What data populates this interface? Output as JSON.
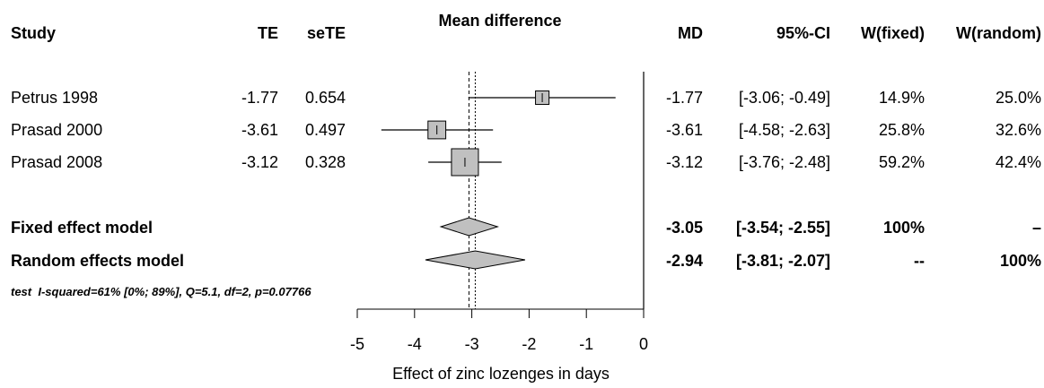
{
  "chart_data": {
    "type": "forest",
    "columns": {
      "study": "Study",
      "te": "TE",
      "sete": "seTE",
      "plot": "Mean difference",
      "md": "MD",
      "ci": "95%-CI",
      "w_fixed": "W(fixed)",
      "w_random": "W(random)"
    },
    "studies": [
      {
        "name": "Petrus 1998",
        "te": "-1.77",
        "sete": "0.654",
        "md_label": "-1.77",
        "ci_label": "[-3.06; -0.49]",
        "w_fixed": "14.9%",
        "w_random": "25.0%",
        "md": -1.77,
        "lower": -3.06,
        "upper": -0.49,
        "weight": 14.9
      },
      {
        "name": "Prasad 2000",
        "te": "-3.61",
        "sete": "0.497",
        "md_label": "-3.61",
        "ci_label": "[-4.58; -2.63]",
        "w_fixed": "25.8%",
        "w_random": "32.6%",
        "md": -3.61,
        "lower": -4.58,
        "upper": -2.63,
        "weight": 25.8
      },
      {
        "name": "Prasad 2008",
        "te": "-3.12",
        "sete": "0.328",
        "md_label": "-3.12",
        "ci_label": "[-3.76; -2.48]",
        "w_fixed": "59.2%",
        "w_random": "42.4%",
        "md": -3.12,
        "lower": -3.76,
        "upper": -2.48,
        "weight": 59.2
      }
    ],
    "models": [
      {
        "name": "Fixed effect model",
        "md_label": "-3.05",
        "ci_label": "[-3.54; -2.55]",
        "w_fixed": "100%",
        "w_random": "–",
        "md": -3.05,
        "lower": -3.54,
        "upper": -2.55
      },
      {
        "name": "Random effects model",
        "md_label": "-2.94",
        "ci_label": "[-3.81; -2.07]",
        "w_fixed": "--",
        "w_random": "100%",
        "md": -2.94,
        "lower": -3.81,
        "upper": -2.07
      }
    ],
    "heterogeneity": "test  I-squared=61% [0%; 89%], Q=5.1, df=2, p=0.07766",
    "x_ticks": [
      "-5",
      "-4",
      "-3",
      "-2",
      "-1",
      "0"
    ],
    "xlim": [
      -5,
      0
    ],
    "xlabel": "Effect of zinc lozenges in days",
    "reference_line": 0,
    "fixed_line": -3.05,
    "random_line": -2.94,
    "box_color": "#c0c0c0",
    "diamond_color": "#c0c0c0",
    "line_color": "#000000"
  }
}
